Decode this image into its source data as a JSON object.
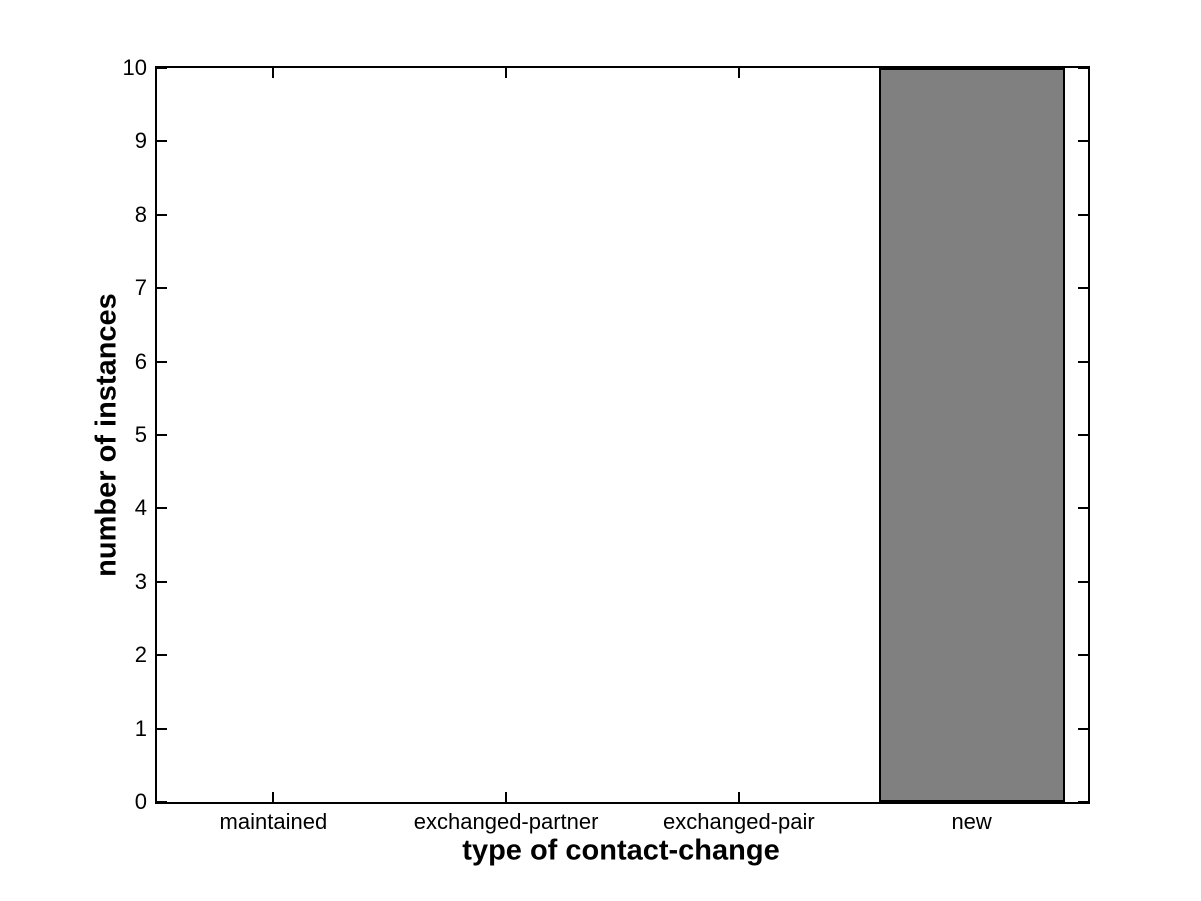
{
  "figure": {
    "background": "#ffffff",
    "axis_color": "#000000",
    "text_color": "#000000"
  },
  "chart_data": {
    "type": "bar",
    "title": "",
    "xlabel": "type of contact-change",
    "ylabel": "number of instances",
    "categories": [
      "maintained",
      "exchanged-partner",
      "exchanged-pair",
      "new"
    ],
    "values": [
      0,
      0,
      0,
      10
    ],
    "ylim": [
      0,
      10
    ],
    "yticks": [
      0,
      1,
      2,
      3,
      4,
      5,
      6,
      7,
      8,
      9,
      10
    ],
    "ytick_labels": [
      "0",
      "1",
      "2",
      "3",
      "4",
      "5",
      "6",
      "7",
      "8",
      "9",
      "10"
    ],
    "bar_width_fraction": 0.8,
    "bar_fill_color": "#808080",
    "bar_edge_color": "#000000",
    "grid": false,
    "legend": null,
    "tick_direction": "in",
    "box": true
  }
}
